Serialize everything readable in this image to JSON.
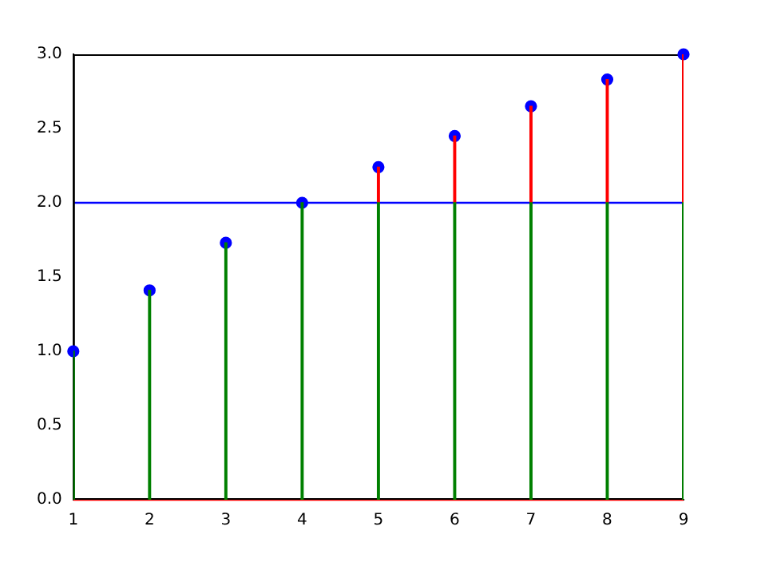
{
  "chart_data": {
    "type": "bar",
    "stacked": true,
    "x": [
      1,
      2,
      3,
      4,
      5,
      6,
      7,
      8,
      9
    ],
    "series": [
      {
        "color": "#008000",
        "values": [
          1,
          1.41,
          1.73,
          2,
          2,
          2,
          2,
          2,
          2
        ]
      },
      {
        "color": "#ff0000",
        "values": [
          null,
          null,
          null,
          null,
          0.24,
          0.45,
          0.65,
          0.83,
          1
        ]
      },
      {
        "type": "scatter",
        "color": "#0000ff",
        "marker": "circle",
        "values": [
          1,
          1.41,
          1.73,
          2,
          2.24,
          2.45,
          2.65,
          2.83,
          3
        ]
      }
    ],
    "ref_lines": [
      {
        "axis": "y",
        "value": 2,
        "color": "#0000ff"
      },
      {
        "axis": "y",
        "value": 0,
        "color": "#ff0000"
      }
    ],
    "xlim": [
      1,
      9
    ],
    "xticks": [
      1,
      2,
      3,
      4,
      5,
      6,
      7,
      8,
      9
    ],
    "ylim": [
      0,
      3
    ],
    "yticks": [
      {
        "value": 0,
        "label": "0.0"
      },
      {
        "value": 0.5,
        "label": "0.5"
      },
      {
        "value": 1,
        "label": "1.0"
      },
      {
        "value": 1.5,
        "label": "1.5"
      },
      {
        "value": 2,
        "label": "2.0"
      },
      {
        "value": 2.5,
        "label": "2.5"
      },
      {
        "value": 3,
        "label": "3.0"
      }
    ],
    "grid": false,
    "legend": false
  }
}
